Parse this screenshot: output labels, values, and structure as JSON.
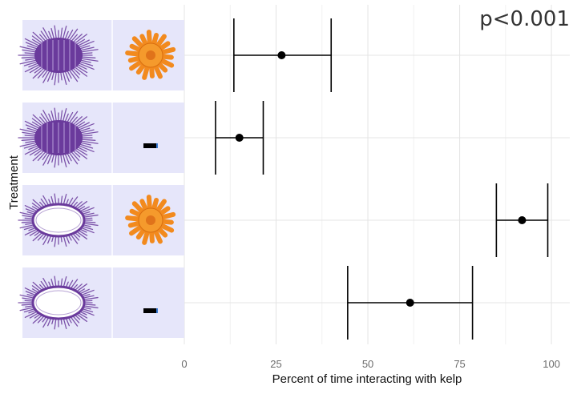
{
  "chart_data": {
    "type": "scatter",
    "title": "",
    "xlabel": "Percent of time interacting with kelp",
    "ylabel": "Treatment",
    "xlim": [
      0,
      105
    ],
    "xticks": [
      0,
      25,
      50,
      75,
      100
    ],
    "xtick_labels": [
      "0",
      "25",
      "50",
      "75",
      "100"
    ],
    "grid": true,
    "legend": "none",
    "annotation": "p<0.001",
    "marker_color": "#000000",
    "panel_color": "#e6e6fa",
    "urchin_color": "#6a3a9c",
    "star_color": "#f28a1e",
    "categories": [
      {
        "urchin": "urchin-icon",
        "predator": "sea-star-icon"
      },
      {
        "urchin": "urchin-icon",
        "predator": "none"
      },
      {
        "urchin": "urchin-test-icon",
        "predator": "sea-star-icon"
      },
      {
        "urchin": "urchin-test-icon",
        "predator": "none"
      }
    ],
    "points": [
      {
        "mean": 26.5,
        "lower": 13.5,
        "upper": 40
      },
      {
        "mean": 15,
        "lower": 8.5,
        "upper": 21.5
      },
      {
        "mean": 92,
        "lower": 85,
        "upper": 99
      },
      {
        "mean": 61.5,
        "lower": 44.5,
        "upper": 78.5
      }
    ]
  }
}
